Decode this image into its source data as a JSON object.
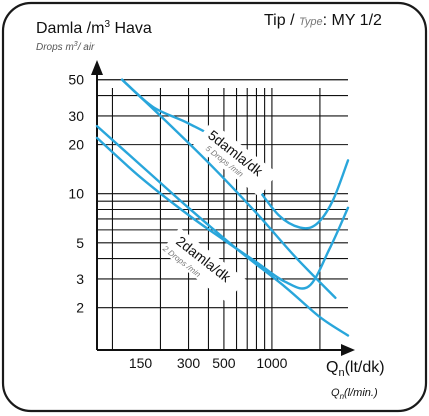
{
  "header": {
    "title_prefix": "Damla /m",
    "title_sup": "3",
    "title_suffix": " Hava",
    "subtitle_prefix": "Drops m",
    "subtitle_sup": "3",
    "subtitle_suffix": "/ air",
    "type_label": "Tip /",
    "type_label_en": "Type",
    "type_value": ": MY 1/2"
  },
  "axes": {
    "x_label_main": "Q",
    "x_label_main_sub": "n",
    "x_label_main_unit": "(lt/dk)",
    "x_label_alt": "Q",
    "x_label_alt_sub": "n",
    "x_label_alt_unit": "(l/min.)"
  },
  "annotations": {
    "five_main": "5damla/dk",
    "five_sub": "5 Drops /min",
    "two_main": "2damla/dk",
    "two_sub": "2 Drops /min"
  },
  "chart_data": {
    "type": "line",
    "x_scale": "log",
    "y_scale": "log",
    "xlim": [
      80,
      3000
    ],
    "ylim": [
      1.1,
      55
    ],
    "x_ticks": [
      150,
      300,
      500,
      1000
    ],
    "x_tick_labels": [
      "150",
      "300",
      "500",
      "1000"
    ],
    "y_ticks": [
      2,
      3,
      5,
      10,
      20,
      30,
      50
    ],
    "y_tick_labels": [
      "2",
      "3",
      "5",
      "10",
      "20",
      "30",
      "50"
    ],
    "grid": true,
    "series": [
      {
        "x": [
          115,
          200,
          400,
          800,
          1400,
          2500
        ],
        "y": [
          50,
          30,
          15.5,
          7.6,
          4.1,
          2.3
        ]
      },
      {
        "x": [
          115,
          180,
          300,
          500,
          750,
          1100,
          1500,
          1900,
          2400,
          3000
        ],
        "y": [
          50,
          34,
          27,
          20,
          12,
          7.4,
          6.2,
          6.5,
          9,
          16
        ]
      },
      {
        "x": [
          80,
          150,
          300,
          600,
          1200,
          2000,
          3000
        ],
        "y": [
          26,
          15,
          8.2,
          4.6,
          2.7,
          1.75,
          1.35
        ]
      },
      {
        "x": [
          80,
          150,
          300,
          500,
          800,
          1200,
          1700,
          2300,
          3000
        ],
        "y": [
          22,
          12.6,
          7.4,
          5.2,
          3.8,
          2.9,
          2.7,
          4.6,
          8.2
        ]
      }
    ]
  }
}
